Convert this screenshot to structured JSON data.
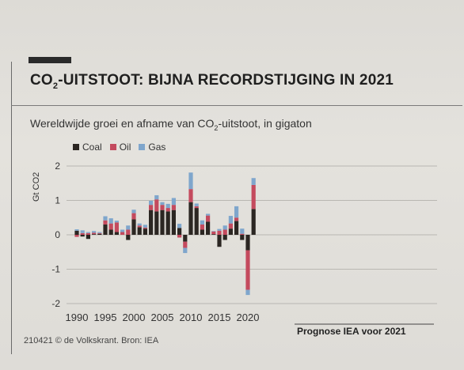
{
  "headline": {
    "prefix": "CO",
    "sub": "2",
    "rest": "-UITSTOOT: BIJNA RECORDSTIJGING IN 2021"
  },
  "subtitle": {
    "prefix": "Wereldwijde groei en afname van CO",
    "sub": "2",
    "rest": "-uitstoot, in gigaton"
  },
  "footer": "210421 © de Volkskrant. Bron: IEA",
  "forecast_note": "Prognose IEA voor 2021",
  "colors": {
    "coal": "#2b2622",
    "oil": "#c44a5e",
    "gas": "#7fa6cc",
    "grid": "#b9b7b2"
  },
  "chart_data": {
    "type": "bar",
    "stacked": true,
    "title": "CO2-UITSTOOT: BIJNA RECORDSTIJGING IN 2021",
    "subtitle": "Wereldwijde groei en afname van CO2-uitstoot, in gigaton",
    "ylabel": "Gt CO2",
    "ylim": [
      -2,
      2
    ],
    "yticks": [
      "2",
      "1",
      "0",
      "-1",
      "-2"
    ],
    "xticks": [
      "1990",
      "1995",
      "2000",
      "2005",
      "2010",
      "2015",
      "2020"
    ],
    "legend": [
      "Coal",
      "Oil",
      "Gas"
    ],
    "legend_position": "top-left",
    "grid": true,
    "categories": [
      1990,
      1991,
      1992,
      1993,
      1994,
      1995,
      1996,
      1997,
      1998,
      1999,
      2000,
      2001,
      2002,
      2003,
      2004,
      2005,
      2006,
      2007,
      2008,
      2009,
      2010,
      2011,
      2012,
      2013,
      2014,
      2015,
      2016,
      2017,
      2018,
      2019,
      2020,
      2021
    ],
    "series": [
      {
        "name": "Coal",
        "values": [
          0.12,
          -0.05,
          -0.12,
          0.02,
          0.03,
          0.3,
          0.15,
          0.08,
          0.0,
          -0.15,
          0.45,
          0.22,
          0.18,
          0.72,
          0.68,
          0.72,
          0.68,
          0.72,
          0.2,
          -0.2,
          0.95,
          0.78,
          0.15,
          0.38,
          0.02,
          -0.35,
          -0.15,
          0.18,
          0.4,
          -0.15,
          -0.45,
          0.75
        ]
      },
      {
        "name": "Oil",
        "values": [
          -0.06,
          0.05,
          0.05,
          0.04,
          0.02,
          0.12,
          0.18,
          0.28,
          0.08,
          0.15,
          0.18,
          0.05,
          0.03,
          0.15,
          0.35,
          0.15,
          0.1,
          0.15,
          -0.08,
          -0.18,
          0.38,
          0.05,
          0.15,
          0.18,
          0.08,
          0.12,
          0.15,
          0.15,
          0.1,
          0.03,
          -1.15,
          0.7
        ]
      },
      {
        "name": "Gas",
        "values": [
          0.04,
          0.08,
          0.03,
          0.05,
          0.03,
          0.12,
          0.15,
          0.05,
          0.07,
          0.12,
          0.1,
          0.06,
          0.08,
          0.12,
          0.12,
          0.08,
          0.12,
          0.2,
          0.12,
          -0.15,
          0.48,
          0.08,
          0.12,
          0.05,
          0.01,
          0.05,
          0.12,
          0.22,
          0.33,
          0.15,
          -0.15,
          0.2
        ]
      }
    ]
  }
}
